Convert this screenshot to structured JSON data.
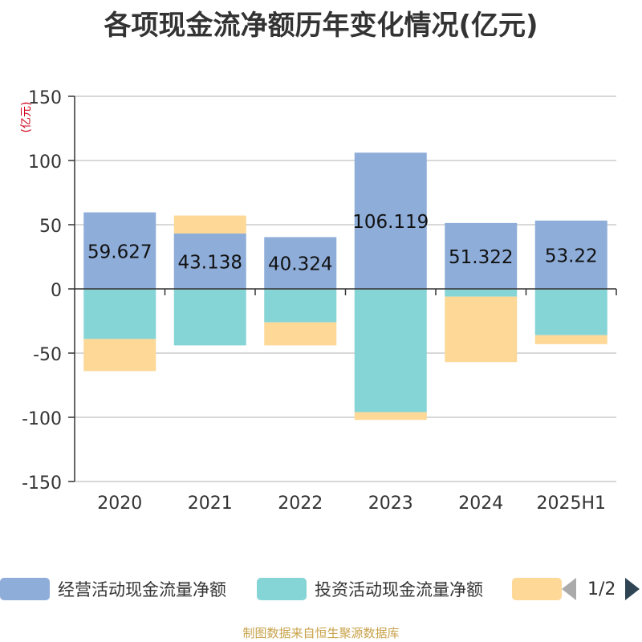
{
  "title": "各项现金流净额历年变化情况(亿元)",
  "source": "制图数据来自恒生聚源数据库",
  "legend": {
    "items": [
      {
        "label": "经营活动现金流量净额",
        "color": "#8eadd9"
      },
      {
        "label": "投资活动现金流量净额",
        "color": "#85d4d6"
      },
      {
        "label": "",
        "color": "#fdd897"
      }
    ],
    "pager": "1/2"
  },
  "chart_data": {
    "type": "bar",
    "stacked": true,
    "categories": [
      "2020",
      "2021",
      "2022",
      "2023",
      "2024",
      "2025H1"
    ],
    "ylabel": "(亿元)",
    "ylim": [
      -150,
      150
    ],
    "yticks": [
      150,
      100,
      50,
      0,
      -50,
      -100,
      -150
    ],
    "grid": true,
    "legend_position": "bottom",
    "series": [
      {
        "name": "经营活动现金流量净额",
        "color": "#8eadd9",
        "values": [
          59.627,
          43.138,
          40.324,
          106.119,
          51.322,
          53.22
        ],
        "labels": [
          "59.627",
          "43.138",
          "40.324",
          "106.119",
          "51.322",
          "53.22"
        ]
      },
      {
        "name": "投资活动现金流量净额",
        "color": "#85d4d6",
        "values": [
          -39,
          -44,
          -26,
          -96,
          -6,
          -36
        ]
      },
      {
        "color": "#fdd897",
        "values": [
          -25,
          14,
          -18,
          -6,
          -51,
          -7
        ]
      }
    ]
  }
}
